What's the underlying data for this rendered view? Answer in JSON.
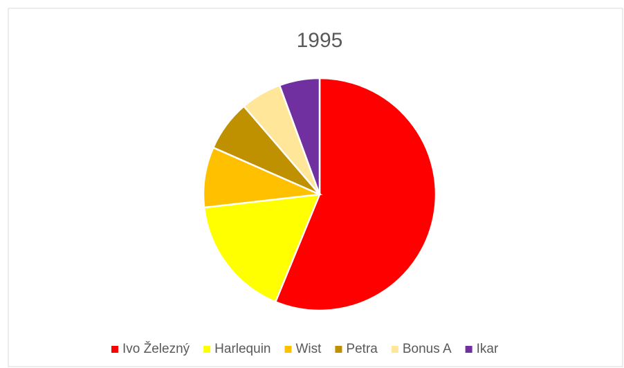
{
  "chart_data": {
    "type": "pie",
    "title": "1995",
    "categories": [
      "Ivo Železný",
      "Harlequin",
      "Wist",
      "Petra",
      "Bonus A",
      "Ikar"
    ],
    "values": [
      56.2,
      17.0,
      8.4,
      7.1,
      5.7,
      5.6
    ],
    "colors": [
      "#ff0000",
      "#ffff00",
      "#ffc000",
      "#bf9000",
      "#ffe699",
      "#7030a0"
    ],
    "legend": "bottom"
  }
}
